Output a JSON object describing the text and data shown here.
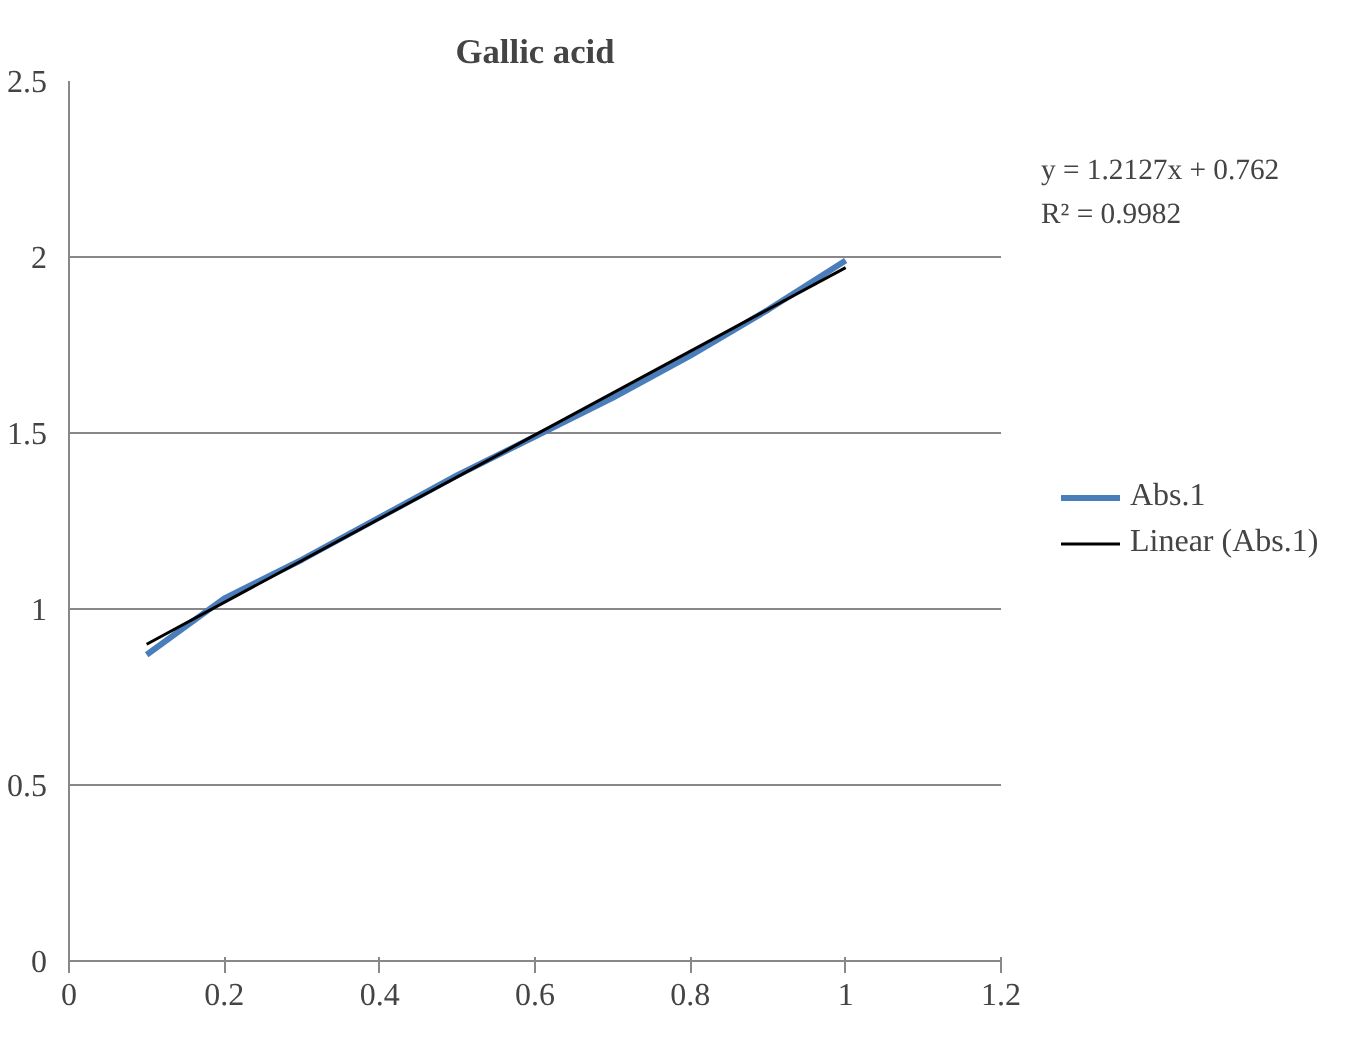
{
  "chart_data": {
    "type": "line",
    "title": "Gallic acid",
    "xlim": [
      0,
      1.2
    ],
    "xticks": [
      0,
      0.2,
      0.4,
      0.6,
      0.8,
      1,
      1.2
    ],
    "ylim": [
      0,
      2.5
    ],
    "yticks": [
      0,
      0.5,
      1,
      1.5,
      2,
      2.5
    ],
    "grid": "y",
    "legend": "right",
    "marker": "none",
    "annotations": [
      "y = 1.2127x + 0.762",
      "R² = 0.9982"
    ],
    "series": [
      {
        "name": "Abs.1",
        "color": "#4a7ebb",
        "x": [
          0.1,
          0.2,
          0.3,
          0.4,
          0.5,
          0.6,
          0.7,
          0.8,
          0.9,
          1.0
        ],
        "values": [
          0.87,
          1.03,
          1.14,
          1.26,
          1.38,
          1.49,
          1.6,
          1.72,
          1.85,
          1.99
        ]
      },
      {
        "name": "Linear (Abs.1)",
        "color": "#000000",
        "x": [
          0.1,
          1.0
        ],
        "values": [
          0.9,
          1.97
        ]
      }
    ]
  }
}
